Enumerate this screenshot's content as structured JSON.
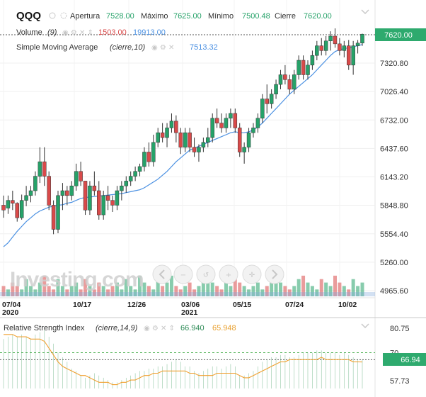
{
  "header": {
    "symbol": "QQQ",
    "open_label": "Apertura",
    "open_value": "7528.00",
    "high_label": "Máximo",
    "high_value": "7625.00",
    "low_label": "Mínimo",
    "low_value": "7500.48",
    "close_label": "Cierre",
    "close_value": "7620.00"
  },
  "volume_legend": {
    "name": "Volume",
    "param": "(9)",
    "value_down": "1503.00",
    "value_up": "19913.00"
  },
  "sma_legend": {
    "name": "Simple Moving Average",
    "param": "(cierre,10)",
    "value": "7513.32"
  },
  "rsi_legend": {
    "name": "Relative Strength Index",
    "param": "(cierre,14,9)",
    "value": "66.940",
    "signal": "65.948"
  },
  "last_price_badge": "7620.00",
  "rsi_badge": "66.94",
  "watermark": "Investing.com",
  "colors": {
    "up": "#26a269",
    "down": "#d94a4a",
    "sma": "#4a90e2",
    "rsi": "#2e8b57",
    "signal": "#f0a030",
    "badge": "#2eaa6e"
  },
  "icons": [
    "eye-icon",
    "gear-icon",
    "close-icon",
    "arrows-icon",
    "nav-left-icon",
    "zoom-out-icon",
    "reset-icon",
    "zoom-in-icon",
    "crosshair-icon",
    "nav-right-icon"
  ],
  "chart_data": [
    {
      "type": "candlestick",
      "title": "QQQ",
      "ylim": [
        4850,
        7800
      ],
      "y_ticks": [
        "7320.80",
        "7026.40",
        "6732.00",
        "6437.60",
        "6143.20",
        "5848.80",
        "5554.40",
        "5260.00",
        "4965.60"
      ],
      "x_ticks": [
        "07/04\n2020",
        "10/17",
        "12/26",
        "03/06\n2021",
        "05/15",
        "07/24",
        "10/02"
      ],
      "series": [
        {
          "name": "QQQ",
          "ohlc": [
            [
              5850,
              5950,
              5720,
              5800
            ],
            [
              5820,
              5950,
              5760,
              5900
            ],
            [
              5900,
              6000,
              5800,
              5870
            ],
            [
              5870,
              5880,
              5680,
              5720
            ],
            [
              5720,
              5960,
              5700,
              5900
            ],
            [
              5900,
              6050,
              5840,
              5950
            ],
            [
              5950,
              6050,
              5880,
              6000
            ],
            [
              6000,
              6200,
              5950,
              6150
            ],
            [
              6150,
              6450,
              6080,
              6300
            ],
            [
              6300,
              6450,
              6050,
              6150
            ],
            [
              6150,
              6200,
              5800,
              5850
            ],
            [
              5850,
              5900,
              5550,
              5600
            ],
            [
              5600,
              6000,
              5560,
              5950
            ],
            [
              5950,
              6080,
              5800,
              6000
            ],
            [
              6000,
              6050,
              5850,
              5950
            ],
            [
              5950,
              6100,
              5900,
              6050
            ],
            [
              6050,
              6280,
              6000,
              6200
            ],
            [
              6200,
              6300,
              6050,
              6100
            ],
            [
              6100,
              6100,
              5750,
              5800
            ],
            [
              5800,
              6100,
              5750,
              6050
            ],
            [
              6050,
              6200,
              5950,
              6000
            ],
            [
              6000,
              6100,
              5700,
              5750
            ],
            [
              5750,
              6000,
              5700,
              5950
            ],
            [
              5950,
              6050,
              5800,
              5900
            ],
            [
              5900,
              5950,
              5780,
              5850
            ],
            [
              5850,
              6050,
              5800,
              6000
            ],
            [
              6000,
              6100,
              5900,
              6050
            ],
            [
              6050,
              6150,
              5980,
              6100
            ],
            [
              6100,
              6200,
              6050,
              6150
            ],
            [
              6150,
              6250,
              6100,
              6200
            ],
            [
              6200,
              6280,
              6150,
              6250
            ],
            [
              6250,
              6450,
              6200,
              6400
            ],
            [
              6400,
              6500,
              6250,
              6300
            ],
            [
              6300,
              6580,
              6250,
              6500
            ],
            [
              6500,
              6650,
              6450,
              6600
            ],
            [
              6600,
              6700,
              6500,
              6550
            ],
            [
              6550,
              6700,
              6450,
              6650
            ],
            [
              6650,
              6800,
              6600,
              6720
            ],
            [
              6720,
              6780,
              6500,
              6600
            ],
            [
              6600,
              6650,
              6380,
              6450
            ],
            [
              6450,
              6650,
              6400,
              6600
            ],
            [
              6600,
              6650,
              6400,
              6450
            ],
            [
              6450,
              6550,
              6350,
              6400
            ],
            [
              6400,
              6480,
              6300,
              6450
            ],
            [
              6450,
              6550,
              6400,
              6500
            ],
            [
              6500,
              6650,
              6450,
              6550
            ],
            [
              6550,
              6800,
              6500,
              6750
            ],
            [
              6750,
              6850,
              6650,
              6700
            ],
            [
              6700,
              6800,
              6600,
              6650
            ],
            [
              6650,
              6800,
              6600,
              6750
            ],
            [
              6750,
              6850,
              6650,
              6800
            ],
            [
              6800,
              6850,
              6600,
              6650
            ],
            [
              6650,
              6700,
              6350,
              6400
            ],
            [
              6400,
              6500,
              6280,
              6450
            ],
            [
              6450,
              6650,
              6400,
              6600
            ],
            [
              6600,
              6700,
              6550,
              6650
            ],
            [
              6650,
              6800,
              6600,
              6750
            ],
            [
              6750,
              7000,
              6700,
              6950
            ],
            [
              6950,
              7100,
              6800,
              6900
            ],
            [
              6900,
              7050,
              6850,
              7000
            ],
            [
              7000,
              7150,
              6950,
              7100
            ],
            [
              7100,
              7250,
              7050,
              7200
            ],
            [
              7200,
              7300,
              7100,
              7150
            ],
            [
              7150,
              7200,
              7000,
              7050
            ],
            [
              7050,
              7250,
              7000,
              7200
            ],
            [
              7200,
              7400,
              7150,
              7350
            ],
            [
              7350,
              7400,
              7150,
              7200
            ],
            [
              7200,
              7350,
              7150,
              7300
            ],
            [
              7300,
              7450,
              7250,
              7400
            ],
            [
              7400,
              7550,
              7350,
              7500
            ],
            [
              7500,
              7580,
              7400,
              7450
            ],
            [
              7450,
              7600,
              7400,
              7550
            ],
            [
              7550,
              7650,
              7450,
              7600
            ],
            [
              7600,
              7680,
              7480,
              7520
            ],
            [
              7520,
              7580,
              7400,
              7450
            ],
            [
              7450,
              7550,
              7380,
              7500
            ],
            [
              7500,
              7560,
              7250,
              7300
            ],
            [
              7300,
              7550,
              7200,
              7500
            ],
            [
              7500,
              7560,
              7420,
              7528
            ],
            [
              7528,
              7625,
              7500,
              7620
            ]
          ]
        },
        {
          "name": "Simple Moving Average (cierre,10)",
          "values": [
            5420,
            5460,
            5520,
            5580,
            5630,
            5680,
            5720,
            5760,
            5790,
            5810,
            5830,
            5840,
            5850,
            5855,
            5870,
            5880,
            5900,
            5920,
            5930,
            5935,
            5940,
            5945,
            5950,
            5955,
            5960,
            5965,
            5970,
            5980,
            5990,
            6000,
            6010,
            6030,
            6060,
            6090,
            6120,
            6160,
            6200,
            6250,
            6300,
            6340,
            6380,
            6420,
            6440,
            6460,
            6480,
            6500,
            6520,
            6540,
            6560,
            6580,
            6600,
            6610,
            6600,
            6600,
            6610,
            6630,
            6660,
            6700,
            6750,
            6800,
            6850,
            6900,
            6950,
            7000,
            7040,
            7080,
            7120,
            7160,
            7200,
            7250,
            7300,
            7350,
            7400,
            7440,
            7460,
            7470,
            7480,
            7490,
            7500,
            7513.32
          ]
        }
      ]
    },
    {
      "type": "bar",
      "title": "Volume (9)",
      "values": [
        3,
        2,
        4,
        3,
        2,
        5,
        3,
        2,
        4,
        6,
        3,
        2,
        5,
        3,
        2,
        3,
        4,
        2,
        5,
        3,
        2,
        4,
        3,
        2,
        3,
        4,
        2,
        5,
        3,
        2,
        6,
        4,
        3,
        2,
        5,
        3,
        4,
        6,
        3,
        2,
        3,
        4,
        2,
        3,
        5,
        6,
        4,
        3,
        2,
        4,
        3,
        5,
        4,
        3,
        2,
        3,
        4,
        2,
        3,
        5,
        7,
        4,
        3,
        2,
        3,
        5,
        6,
        4,
        3,
        2,
        5,
        4,
        3,
        6,
        4,
        3,
        2,
        5,
        3,
        4
      ],
      "up_color": "#26a269",
      "down_color": "#d94a4a"
    },
    {
      "type": "line",
      "title": "Relative Strength Index (cierre,14,9)",
      "ylim": [
        50,
        84
      ],
      "y_ticks": [
        "80.75",
        "70",
        "57.73"
      ],
      "levels": [
        70,
        66.94
      ],
      "series": [
        {
          "name": "RSI",
          "values": [
            76,
            77,
            78,
            77,
            78,
            77,
            76,
            78,
            79,
            80,
            77,
            74,
            70,
            68,
            66,
            63,
            62,
            60,
            59,
            60,
            61,
            60,
            59,
            58,
            57,
            57,
            58,
            59,
            60,
            61,
            62,
            62,
            63,
            63,
            64,
            64,
            65,
            66,
            67,
            66,
            64,
            64,
            62,
            61,
            62,
            63,
            64,
            64,
            63,
            64,
            65,
            64,
            60,
            60,
            61,
            62,
            64,
            66,
            67,
            68,
            68,
            69,
            69,
            68,
            68,
            69,
            70,
            70,
            70,
            71,
            71,
            70,
            70,
            70,
            69,
            70,
            69,
            68,
            67,
            66.94
          ]
        },
        {
          "name": "Signal",
          "values": [
            78,
            78,
            78,
            77,
            77,
            77,
            76,
            76,
            76,
            75,
            72,
            69,
            66,
            64,
            63,
            62,
            61,
            60,
            60,
            59,
            58,
            57,
            57,
            57,
            56,
            56,
            57,
            57,
            58,
            58,
            59,
            60,
            60,
            61,
            61,
            62,
            62,
            62,
            62,
            62,
            62,
            61,
            61,
            60,
            60,
            60,
            60,
            61,
            61,
            61,
            61,
            61,
            60,
            59,
            59,
            60,
            61,
            62,
            63,
            64,
            65,
            66,
            66,
            67,
            67,
            67,
            67,
            67,
            67,
            67,
            68,
            67,
            67,
            67,
            67,
            67,
            67,
            66,
            66,
            65.948
          ]
        }
      ]
    }
  ]
}
